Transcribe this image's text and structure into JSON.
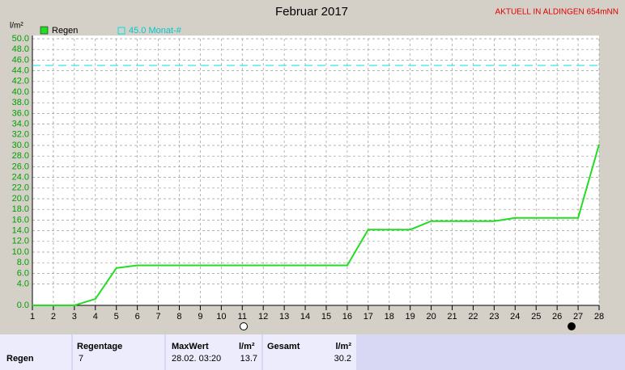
{
  "chart_data": {
    "type": "line",
    "title": "Februar 2017",
    "annotation": "AKTUELL IN ALDINGEN 654mNN",
    "y_label": "l/m²",
    "x": [
      1,
      2,
      3,
      4,
      5,
      6,
      7,
      8,
      9,
      10,
      11,
      12,
      13,
      14,
      15,
      16,
      17,
      18,
      19,
      20,
      21,
      22,
      23,
      24,
      25,
      26,
      27,
      28
    ],
    "xlim": [
      1,
      28
    ],
    "xticks": [
      1,
      2,
      3,
      4,
      5,
      6,
      7,
      8,
      9,
      10,
      11,
      12,
      13,
      14,
      15,
      16,
      17,
      18,
      19,
      20,
      21,
      22,
      23,
      24,
      25,
      26,
      27,
      28
    ],
    "ylim": [
      0,
      50
    ],
    "yticks": [
      {
        "value": 0,
        "label": "0.0"
      },
      {
        "value": 4,
        "label": "4.0"
      },
      {
        "value": 6,
        "label": "6.0"
      },
      {
        "value": 8,
        "label": "8.0"
      },
      {
        "value": 10,
        "label": "10.0"
      },
      {
        "value": 12,
        "label": "12.0"
      },
      {
        "value": 14,
        "label": "14.0"
      },
      {
        "value": 16,
        "label": "16.0"
      },
      {
        "value": 18,
        "label": "18.0"
      },
      {
        "value": 20,
        "label": "20.0"
      },
      {
        "value": 22,
        "label": "22.0"
      },
      {
        "value": 24,
        "label": "24.0"
      },
      {
        "value": 26,
        "label": "26.0"
      },
      {
        "value": 28,
        "label": "28.0"
      },
      {
        "value": 30,
        "label": "30.0"
      },
      {
        "value": 32,
        "label": "32.0"
      },
      {
        "value": 34,
        "label": "34.0"
      },
      {
        "value": 36,
        "label": "36.0"
      },
      {
        "value": 38,
        "label": "38.0"
      },
      {
        "value": 40,
        "label": "40.0"
      },
      {
        "value": 42,
        "label": "42.0"
      },
      {
        "value": 44,
        "label": "44.0"
      },
      {
        "value": 46,
        "label": "46.0"
      },
      {
        "value": 48,
        "label": "48.0"
      },
      {
        "value": 50,
        "label": "50.0"
      }
    ],
    "grid": true,
    "series": [
      {
        "name": "Regen",
        "color": "#22dd22",
        "values": [
          0,
          0,
          0,
          1.2,
          7.0,
          7.5,
          7.5,
          7.5,
          7.5,
          7.5,
          7.5,
          7.5,
          7.5,
          7.5,
          7.5,
          7.5,
          14.2,
          14.2,
          14.2,
          15.8,
          15.8,
          15.8,
          15.8,
          16.4,
          16.4,
          16.4,
          16.4,
          30.2
        ]
      }
    ],
    "threshold": {
      "name": "45.0 Monat-#",
      "value": 45,
      "color": "#00e0e0"
    }
  },
  "summary": {
    "row_label": "Regen",
    "regentage_label": "Regentage",
    "regentage": "7",
    "maxwert_label": "MaxWert",
    "maxwert_time": "28.02. 03:20",
    "unit": "l/m²",
    "maxwert": "13.7",
    "gesamt_label": "Gesamt",
    "gesamt": "30.2"
  }
}
